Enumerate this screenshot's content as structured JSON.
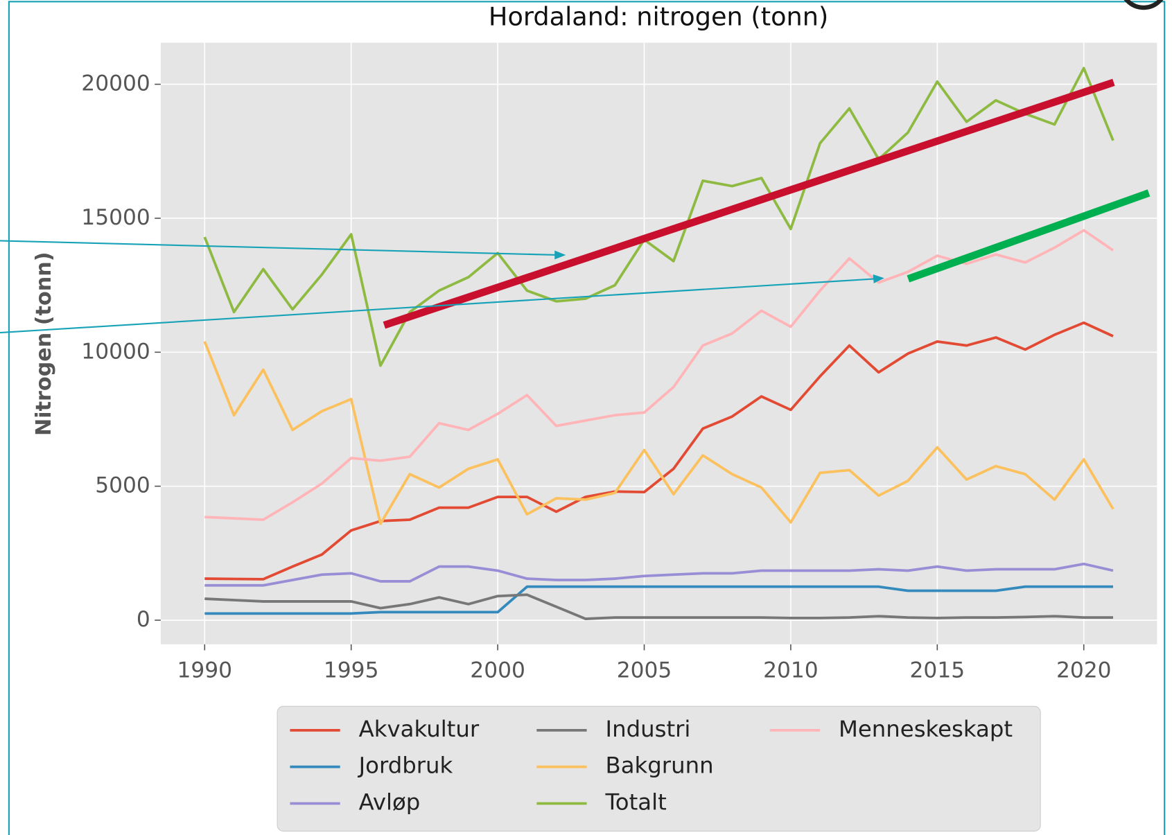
{
  "chart_data": {
    "type": "line",
    "title": "Hordaland: nitrogen (tonn)",
    "ylabel": "Nitrogen (tonn)",
    "x": [
      1990,
      1991,
      1992,
      1993,
      1994,
      1995,
      1996,
      1997,
      1998,
      1999,
      2000,
      2001,
      2002,
      2003,
      2004,
      2005,
      2006,
      2007,
      2008,
      2009,
      2010,
      2011,
      2012,
      2013,
      2014,
      2015,
      2016,
      2017,
      2018,
      2019,
      2020,
      2021
    ],
    "xlim": [
      1988.5,
      2022.5
    ],
    "xticks": [
      1990,
      1995,
      2000,
      2005,
      2010,
      2015,
      2020
    ],
    "ylim": [
      -900,
      21550
    ],
    "yticks": [
      0,
      5000,
      10000,
      15000,
      20000
    ],
    "grid": true,
    "legend": "bottom",
    "series": [
      {
        "name": "Akvakultur",
        "color": "#E24A33",
        "values": [
          1550,
          1540,
          1530,
          2000,
          2450,
          3350,
          3700,
          3750,
          4200,
          4200,
          4600,
          4600,
          4050,
          4600,
          4800,
          4780,
          5650,
          7150,
          7600,
          8350,
          7850,
          9100,
          10250,
          9250,
          9950,
          10400,
          10250,
          10550,
          10100,
          10650,
          11100,
          10600
        ]
      },
      {
        "name": "Jordbruk",
        "color": "#348ABD",
        "values": [
          250,
          250,
          250,
          250,
          250,
          250,
          300,
          300,
          300,
          300,
          300,
          1250,
          1250,
          1250,
          1250,
          1250,
          1250,
          1250,
          1250,
          1250,
          1250,
          1250,
          1250,
          1250,
          1100,
          1100,
          1100,
          1100,
          1250,
          1250,
          1250,
          1250
        ]
      },
      {
        "name": "Avløp",
        "color": "#988ED5",
        "values": [
          1300,
          1300,
          1300,
          1500,
          1700,
          1750,
          1450,
          1450,
          2000,
          2000,
          1850,
          1550,
          1500,
          1500,
          1550,
          1650,
          1700,
          1750,
          1750,
          1850,
          1850,
          1850,
          1850,
          1900,
          1850,
          2000,
          1850,
          1900,
          1900,
          1900,
          2100,
          1850
        ]
      },
      {
        "name": "Industri",
        "color": "#777777",
        "values": [
          800,
          750,
          700,
          700,
          700,
          700,
          450,
          600,
          850,
          600,
          900,
          950,
          500,
          50,
          100,
          100,
          100,
          100,
          100,
          100,
          80,
          80,
          100,
          150,
          100,
          80,
          100,
          100,
          120,
          150,
          100,
          100
        ]
      },
      {
        "name": "Bakgrunn",
        "color": "#FBC15E",
        "values": [
          10400,
          7650,
          9350,
          7100,
          7800,
          8250,
          3600,
          5450,
          4950,
          5650,
          6000,
          3950,
          4550,
          4500,
          4750,
          6350,
          4700,
          6150,
          5450,
          4950,
          3650,
          5500,
          5600,
          4650,
          5200,
          6450,
          5250,
          5750,
          5450,
          4500,
          6000,
          4150
        ]
      },
      {
        "name": "Totalt",
        "color": "#8EBA42",
        "values": [
          14300,
          11500,
          13100,
          11600,
          12900,
          14400,
          9500,
          11500,
          12300,
          12800,
          13700,
          12300,
          11900,
          12000,
          12500,
          14200,
          13400,
          16400,
          16200,
          16500,
          14600,
          17800,
          19100,
          17200,
          18200,
          20100,
          18600,
          19400,
          18900,
          18500,
          20600,
          17900
        ]
      },
      {
        "name": "Menneskeskapt",
        "color": "#FFB5B8",
        "values": [
          3850,
          3800,
          3750,
          4400,
          5100,
          6050,
          5950,
          6100,
          7350,
          7100,
          7700,
          8400,
          7250,
          7450,
          7650,
          7750,
          8700,
          10250,
          10700,
          11550,
          10950,
          12300,
          13500,
          12600,
          13000,
          13600,
          13300,
          13650,
          13350,
          13900,
          14550,
          13800
        ]
      }
    ]
  }
}
